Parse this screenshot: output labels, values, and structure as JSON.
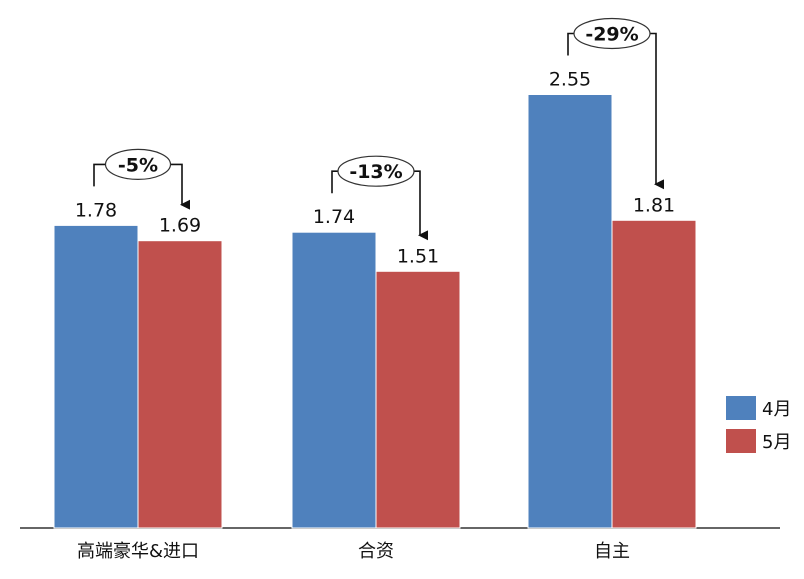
{
  "chart_data": {
    "type": "bar",
    "categories": [
      "高端豪华&进口",
      "合资",
      "自主"
    ],
    "series": [
      {
        "name": "4月",
        "values": [
          1.78,
          1.74,
          2.55
        ],
        "color": "#4F81BD"
      },
      {
        "name": "5月",
        "values": [
          1.69,
          1.51,
          1.81
        ],
        "color": "#C0504D"
      }
    ],
    "value_labels": [
      [
        "1.78",
        "1.74",
        "2.55"
      ],
      [
        "1.69",
        "1.51",
        "1.81"
      ]
    ],
    "changes": [
      "-5%",
      "-13%",
      "-29%"
    ],
    "ylim": [
      0,
      3.0
    ],
    "grid": false,
    "legend_position": "right"
  }
}
